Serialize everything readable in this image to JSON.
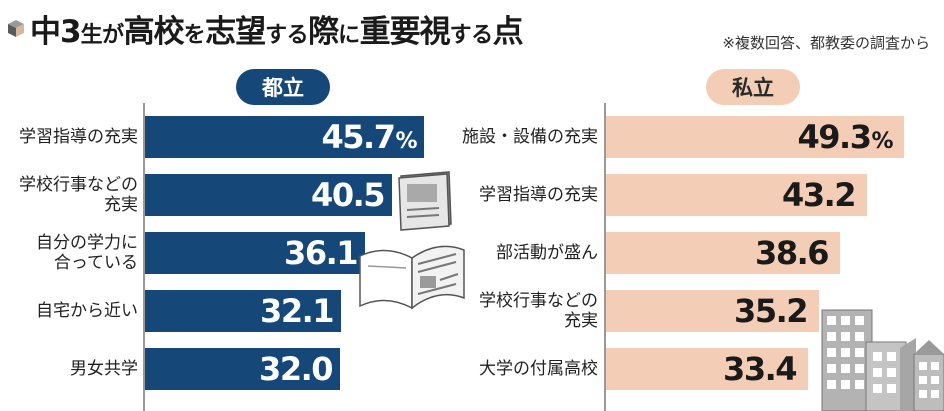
{
  "title": {
    "parts": [
      {
        "text": "中3",
        "size": "big"
      },
      {
        "text": "生が",
        "size": "small"
      },
      {
        "text": "高校",
        "size": "big"
      },
      {
        "text": "を",
        "size": "small"
      },
      {
        "text": "志望",
        "size": "big"
      },
      {
        "text": "する",
        "size": "small"
      },
      {
        "text": "際",
        "size": "big"
      },
      {
        "text": "に",
        "size": "small"
      },
      {
        "text": "重要視",
        "size": "big"
      },
      {
        "text": "する",
        "size": "small"
      },
      {
        "text": "点",
        "size": "big"
      }
    ]
  },
  "note": "※複数回答、都教委の調査から",
  "colors": {
    "public_bar": "#154879",
    "private_bar": "#f3cdb5",
    "title_text": "#1a1a1a"
  },
  "chart_data": [
    {
      "type": "bar",
      "orientation": "horizontal",
      "title": "都立",
      "unit": "%",
      "categories": [
        [
          "学習指導の充実"
        ],
        [
          "学校行事などの",
          "充実"
        ],
        [
          "自分の学力に",
          "合っている"
        ],
        [
          "自宅から近い"
        ],
        [
          "男女共学"
        ]
      ],
      "values": [
        45.7,
        40.5,
        36.1,
        32.1,
        32.0
      ],
      "value_labels": [
        "45.7",
        "40.5",
        "36.1",
        "32.1",
        "32.0"
      ],
      "percent_on_first": true,
      "xlim": [
        0,
        50
      ]
    },
    {
      "type": "bar",
      "orientation": "horizontal",
      "title": "私立",
      "unit": "%",
      "categories": [
        [
          "施設・設備の充実"
        ],
        [
          "学習指導の充実"
        ],
        [
          "部活動が盛ん"
        ],
        [
          "学校行事などの",
          "充実"
        ],
        [
          "大学の付属高校"
        ]
      ],
      "values": [
        49.3,
        43.2,
        38.6,
        35.2,
        33.4
      ],
      "value_labels": [
        "49.3",
        "43.2",
        "38.6",
        "35.2",
        "33.4"
      ],
      "percent_on_first": true,
      "xlim": [
        0,
        50
      ]
    }
  ]
}
